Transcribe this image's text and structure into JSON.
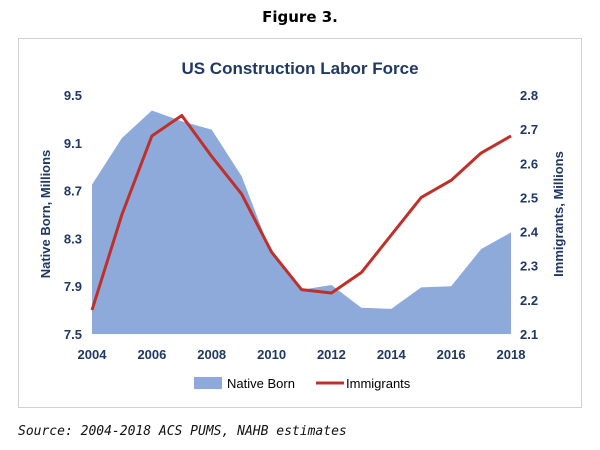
{
  "figure_label": "Figure 3.",
  "source_note": "Source: 2004-2018 ACS PUMS, NAHB estimates",
  "colors": {
    "native_born": "#8eaadb",
    "immigrants": "#c0302a",
    "text": "#1f3864"
  },
  "chart_data": {
    "type": "area+line",
    "title": "US Construction Labor Force",
    "xlabel": "",
    "ylabel_left": "Native Born, Millions",
    "ylabel_right": "Immigrants, Millions",
    "x": [
      2004,
      2005,
      2006,
      2007,
      2008,
      2009,
      2010,
      2011,
      2012,
      2013,
      2014,
      2015,
      2016,
      2017,
      2018
    ],
    "x_ticks": [
      "2004",
      "2006",
      "2008",
      "2010",
      "2012",
      "2014",
      "2016",
      "2018"
    ],
    "y_left_ticks": [
      "7.5",
      "7.9",
      "8.3",
      "8.7",
      "9.1",
      "9.5"
    ],
    "y_right_ticks": [
      "2.1",
      "2.2",
      "2.3",
      "2.4",
      "2.5",
      "2.6",
      "2.7",
      "2.8"
    ],
    "ylim_left": [
      7.5,
      9.5
    ],
    "ylim_right": [
      2.1,
      2.8
    ],
    "grid": false,
    "legend": "bottom",
    "series": [
      {
        "name": "Native Born",
        "type": "area",
        "axis": "left",
        "values": [
          8.75,
          9.14,
          9.37,
          9.28,
          9.21,
          8.82,
          8.17,
          7.87,
          7.91,
          7.72,
          7.71,
          7.89,
          7.9,
          8.21,
          8.35
        ]
      },
      {
        "name": "Immigrants",
        "type": "line",
        "axis": "right",
        "values": [
          2.17,
          2.45,
          2.68,
          2.74,
          2.62,
          2.51,
          2.34,
          2.23,
          2.22,
          2.28,
          2.39,
          2.5,
          2.55,
          2.63,
          2.68
        ]
      }
    ]
  }
}
